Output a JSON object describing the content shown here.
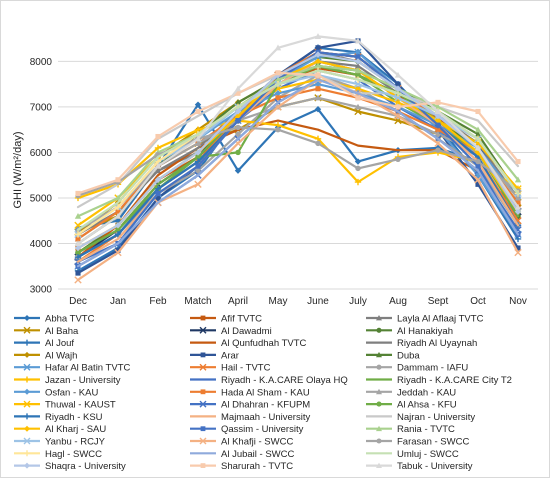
{
  "chart_data": {
    "type": "line",
    "ylabel": "GHI (W/m²/day)",
    "xlabel": "",
    "ylim": [
      3000,
      8800
    ],
    "yticks": [
      3000,
      4000,
      5000,
      6000,
      7000,
      8000
    ],
    "grid": "horizontal",
    "legend_position": "bottom",
    "categories": [
      "Dec",
      "Jan",
      "Feb",
      "Match",
      "April",
      "May",
      "June",
      "July",
      "Aug",
      "Sept",
      "Oct",
      "Nov"
    ],
    "series": [
      {
        "name": "Abha TVTC",
        "color": "#2e75b6",
        "marker": "diamond",
        "values": [
          4350,
          4500,
          5700,
          7050,
          5600,
          6550,
          6950,
          5800,
          6050,
          6100,
          5800,
          4550
        ]
      },
      {
        "name": "Afif TVTC",
        "color": "#c55a11",
        "marker": "square",
        "values": [
          3900,
          4400,
          5400,
          5900,
          6700,
          7500,
          7850,
          7700,
          7250,
          6750,
          6100,
          4850
        ]
      },
      {
        "name": "Layla Al Aflaaj TVTC",
        "color": "#7f7f7f",
        "marker": "triangle",
        "values": [
          4100,
          4700,
          5600,
          6000,
          6800,
          7600,
          8000,
          7900,
          7300,
          6800,
          6100,
          5000
        ]
      },
      {
        "name": "Al Baha",
        "color": "#bf9000",
        "marker": "x",
        "values": [
          4250,
          4600,
          5700,
          6200,
          6500,
          7000,
          7200,
          6900,
          6700,
          6400,
          6000,
          4900
        ]
      },
      {
        "name": "Al Dawadmi",
        "color": "#1f3864",
        "marker": "x",
        "values": [
          3700,
          4300,
          5300,
          5900,
          6900,
          7700,
          8200,
          8100,
          7400,
          6700,
          6200,
          4700
        ]
      },
      {
        "name": "Al Hanakiyah",
        "color": "#548235",
        "marker": "circle",
        "values": [
          3800,
          4400,
          5400,
          6000,
          6900,
          7700,
          8100,
          8000,
          7400,
          6700,
          6100,
          4600
        ]
      },
      {
        "name": "Al Jouf",
        "color": "#2e75b6",
        "marker": "plus",
        "values": [
          3400,
          3900,
          5000,
          5600,
          6800,
          7700,
          8300,
          8200,
          7500,
          6600,
          5500,
          4100
        ]
      },
      {
        "name": "Al Qunfudhah TVTC",
        "color": "#c55a11",
        "marker": "none",
        "values": [
          3700,
          4400,
          5500,
          6100,
          6500,
          6700,
          6500,
          6150,
          6050,
          6050,
          5600,
          4750
        ]
      },
      {
        "name": "Riyadh Al Uyaynah",
        "color": "#7f7f7f",
        "marker": "none",
        "values": [
          4200,
          4700,
          5600,
          6100,
          6900,
          7700,
          8200,
          8000,
          7400,
          6800,
          6200,
          5000
        ]
      },
      {
        "name": "Al Wajh",
        "color": "#bf9000",
        "marker": "diamond",
        "values": [
          4250,
          4900,
          5900,
          6500,
          7100,
          7600,
          7900,
          7700,
          7300,
          6800,
          6300,
          5100
        ]
      },
      {
        "name": "Arar",
        "color": "#2f5597",
        "marker": "square",
        "values": [
          3350,
          3850,
          5000,
          5700,
          6800,
          7700,
          8300,
          8450,
          7500,
          6500,
          5300,
          3900
        ]
      },
      {
        "name": "Duba",
        "color": "#548235",
        "marker": "triangle",
        "values": [
          4000,
          4600,
          5700,
          6400,
          7100,
          7600,
          7900,
          7800,
          7400,
          6900,
          6400,
          5100
        ]
      },
      {
        "name": "Hafar Al Batin TVTC",
        "color": "#5b9bd5",
        "marker": "x",
        "values": [
          3500,
          4000,
          5100,
          5700,
          6700,
          7600,
          8100,
          8200,
          7400,
          6500,
          5500,
          4200
        ]
      },
      {
        "name": "Hail - TVTC",
        "color": "#ed7d31",
        "marker": "x",
        "values": [
          3600,
          4200,
          5200,
          5800,
          6800,
          7700,
          8200,
          8100,
          7400,
          6700,
          5900,
          4500
        ]
      },
      {
        "name": "Dammam - IAFU",
        "color": "#a5a5a5",
        "marker": "circle",
        "values": [
          3700,
          4200,
          5100,
          5600,
          6400,
          7200,
          7700,
          7400,
          6900,
          6300,
          5700,
          4400
        ]
      },
      {
        "name": "Jazan - University",
        "color": "#ffc000",
        "marker": "plus",
        "values": [
          5000,
          5300,
          6100,
          6500,
          6700,
          6600,
          6300,
          5350,
          5900,
          6000,
          5800,
          5200
        ]
      },
      {
        "name": "Riyadh - K.A.CARE Olaya HQ",
        "color": "#4472c4",
        "marker": "none",
        "values": [
          3700,
          4200,
          5200,
          5800,
          6700,
          7400,
          7800,
          7600,
          7000,
          6500,
          5900,
          4400
        ]
      },
      {
        "name": "Riyadh - K.A.CARE City T2",
        "color": "#70ad47",
        "marker": "none",
        "values": [
          3800,
          4300,
          5300,
          5900,
          6800,
          7500,
          7900,
          7700,
          7100,
          6600,
          6000,
          4600
        ]
      },
      {
        "name": "Osfan - KAU",
        "color": "#5b9bd5",
        "marker": "diamond",
        "values": [
          4300,
          4800,
          5800,
          6300,
          6900,
          7300,
          7500,
          7300,
          7000,
          6600,
          6100,
          5000
        ]
      },
      {
        "name": "Hada Al Sham - KAU",
        "color": "#ed7d31",
        "marker": "square",
        "values": [
          4100,
          4700,
          5700,
          6200,
          6800,
          7200,
          7400,
          7200,
          6900,
          6500,
          6000,
          4900
        ]
      },
      {
        "name": "Jeddah - KAU",
        "color": "#a5a5a5",
        "marker": "triangle",
        "values": [
          4300,
          4800,
          5700,
          6200,
          6700,
          7000,
          7200,
          7000,
          6800,
          6400,
          6000,
          5000
        ]
      },
      {
        "name": "Thuwal - KAUST",
        "color": "#ffc000",
        "marker": "x",
        "values": [
          4400,
          5000,
          5900,
          6400,
          7000,
          7400,
          7600,
          7400,
          7100,
          6700,
          6200,
          5200
        ]
      },
      {
        "name": "Al Dhahran - KFUPM",
        "color": "#4472c4",
        "marker": "x",
        "values": [
          3600,
          4000,
          4900,
          5500,
          6300,
          7100,
          7600,
          7300,
          6900,
          6300,
          5600,
          4300
        ]
      },
      {
        "name": "Al Ahsa - KFU",
        "color": "#70ad47",
        "marker": "circle",
        "values": [
          3800,
          4300,
          5200,
          5900,
          6000,
          7500,
          7900,
          7700,
          7300,
          6700,
          6000,
          4700
        ]
      },
      {
        "name": "Riyadh - KSU",
        "color": "#2e75b6",
        "marker": "plus",
        "values": [
          3700,
          4200,
          5200,
          5800,
          6700,
          7500,
          8000,
          7800,
          7200,
          6600,
          5900,
          4400
        ]
      },
      {
        "name": "Majmaah - University",
        "color": "#f4b183",
        "marker": "none",
        "values": [
          3600,
          4100,
          5100,
          5700,
          6700,
          7500,
          8000,
          7800,
          7200,
          6600,
          5800,
          4400
        ]
      },
      {
        "name": "Najran - University",
        "color": "#c9c9c9",
        "marker": "none",
        "values": [
          4800,
          5300,
          6300,
          6800,
          7300,
          7700,
          7700,
          7300,
          7300,
          7000,
          6700,
          5700
        ]
      },
      {
        "name": "Al Kharj - SAU",
        "color": "#ffc000",
        "marker": "diamond",
        "values": [
          3900,
          4400,
          5400,
          6000,
          6800,
          7600,
          8000,
          7800,
          7200,
          6700,
          6000,
          4700
        ]
      },
      {
        "name": "Qassim - University",
        "color": "#4472c4",
        "marker": "square",
        "values": [
          3500,
          4000,
          5100,
          5700,
          6700,
          7600,
          8200,
          8100,
          7400,
          6600,
          5700,
          4200
        ]
      },
      {
        "name": "Rania - TVTC",
        "color": "#a9d18e",
        "marker": "triangle",
        "values": [
          4600,
          5000,
          6000,
          6400,
          7000,
          7600,
          7900,
          7800,
          7400,
          7000,
          6500,
          5400
        ]
      },
      {
        "name": "Yanbu - RCJY",
        "color": "#9dc3e6",
        "marker": "x",
        "values": [
          4200,
          4800,
          5800,
          6300,
          7000,
          7500,
          7700,
          7500,
          7200,
          6800,
          6300,
          5100
        ]
      },
      {
        "name": "Al Khafji - SWCC",
        "color": "#f4b183",
        "marker": "x",
        "values": [
          3200,
          3800,
          4900,
          5300,
          6200,
          7000,
          7600,
          7300,
          6800,
          6200,
          5400,
          3800
        ]
      },
      {
        "name": "Farasan - SWCC",
        "color": "#a5a5a5",
        "marker": "circle",
        "values": [
          5050,
          5350,
          5950,
          6300,
          6550,
          6500,
          6200,
          5650,
          5850,
          6050,
          5800,
          5150
        ]
      },
      {
        "name": "Hagl - SWCC",
        "color": "#ffe699",
        "marker": "plus",
        "values": [
          4200,
          4800,
          5800,
          6400,
          7000,
          7500,
          7800,
          7600,
          7300,
          6900,
          6300,
          5100
        ]
      },
      {
        "name": "Al Jubail - SWCC",
        "color": "#8faadc",
        "marker": "none",
        "values": [
          3500,
          4000,
          4900,
          5500,
          6300,
          7100,
          7600,
          7300,
          6900,
          6300,
          5600,
          4200
        ]
      },
      {
        "name": "Umluj - SWCC",
        "color": "#c5e0b4",
        "marker": "none",
        "values": [
          4300,
          4900,
          5900,
          6400,
          7000,
          7500,
          7800,
          7600,
          7300,
          6900,
          6300,
          5100
        ]
      },
      {
        "name": "Shaqra - University",
        "color": "#b4c7e7",
        "marker": "diamond",
        "values": [
          3900,
          4400,
          5400,
          6000,
          6900,
          7700,
          8150,
          8000,
          7400,
          6800,
          6100,
          4700
        ]
      },
      {
        "name": "Sharurah - TVTC",
        "color": "#f8cbad",
        "marker": "square",
        "values": [
          5100,
          5400,
          6350,
          6900,
          7300,
          7750,
          7700,
          7200,
          7000,
          7100,
          6900,
          5800
        ]
      },
      {
        "name": "Tabuk - University",
        "color": "#d9d9d9",
        "marker": "triangle",
        "values": [
          4000,
          4600,
          5700,
          6300,
          7400,
          8300,
          8550,
          8450,
          7700,
          6900,
          6100,
          4800
        ]
      }
    ]
  }
}
